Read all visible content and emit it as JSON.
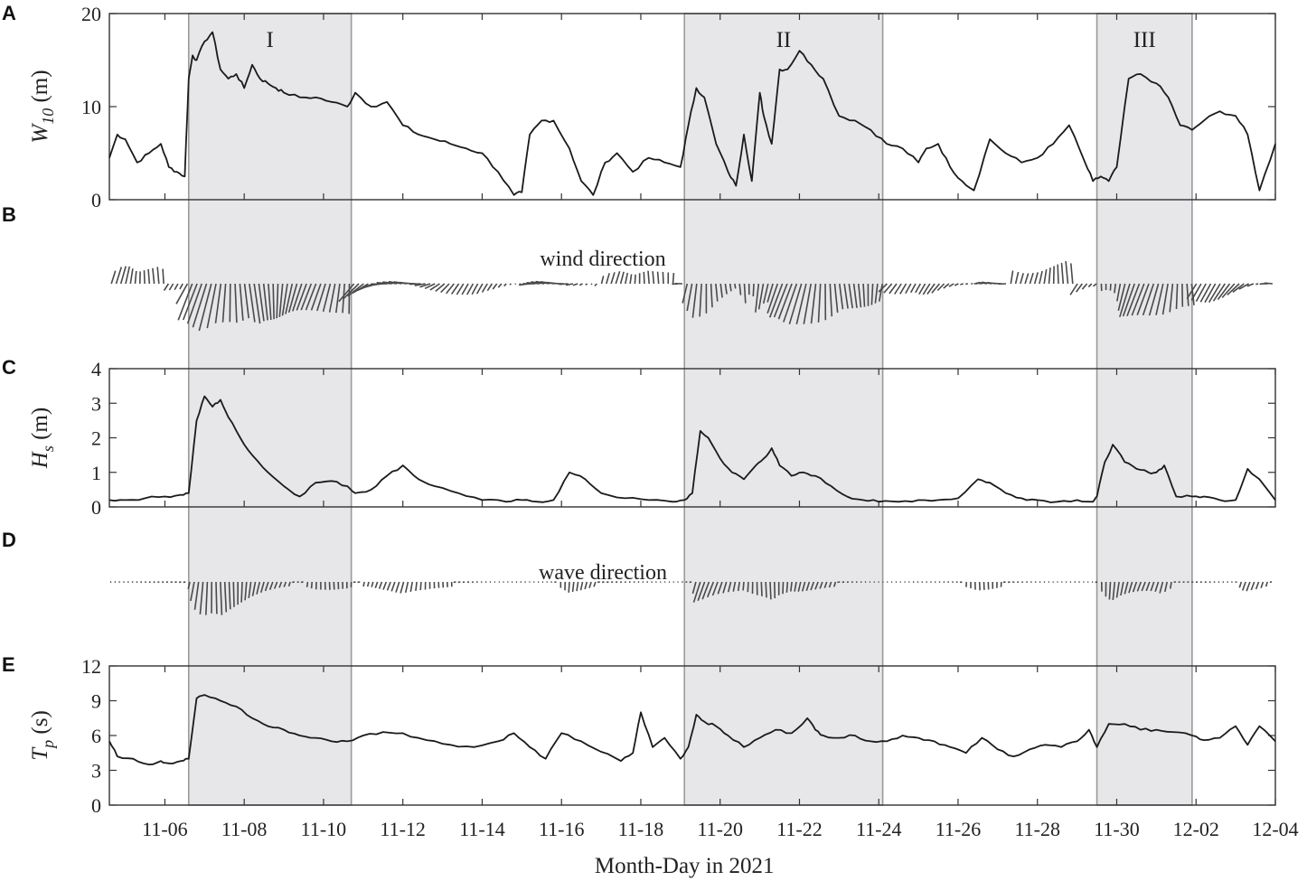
{
  "figure": {
    "xlabel": "Month-Day in 2021",
    "x_tick_labels": [
      "11-06",
      "11-08",
      "11-10",
      "11-12",
      "11-14",
      "11-16",
      "11-18",
      "11-20",
      "11-22",
      "11-24",
      "11-26",
      "11-28",
      "11-30",
      "12-02",
      "12-04"
    ],
    "x_tick_days": [
      6,
      8,
      10,
      12,
      14,
      16,
      18,
      20,
      22,
      24,
      26,
      28,
      30,
      32,
      34
    ],
    "x_range_days": [
      4.6,
      34
    ]
  },
  "shaded_events": [
    {
      "label": "I",
      "start_day": 6.6,
      "end_day": 10.7
    },
    {
      "label": "II",
      "start_day": 19.1,
      "end_day": 24.1
    },
    {
      "label": "III",
      "start_day": 29.5,
      "end_day": 31.9
    }
  ],
  "chart_data": [
    {
      "panel": "A",
      "type": "line",
      "ylabel_main": "W",
      "ylabel_sub": "10",
      "ylabel_unit": " (m)",
      "ylim": [
        0,
        20
      ],
      "yticks": [
        0,
        10,
        20
      ],
      "x": [
        4.6,
        4.8,
        5.0,
        5.3,
        5.6,
        5.9,
        6.1,
        6.3,
        6.5,
        6.6,
        6.7,
        6.8,
        7.0,
        7.2,
        7.4,
        7.6,
        7.8,
        8.0,
        8.2,
        8.4,
        8.6,
        8.8,
        9.0,
        9.4,
        9.8,
        10.2,
        10.6,
        10.8,
        11.2,
        11.6,
        12.0,
        12.4,
        12.8,
        13.2,
        13.6,
        14.0,
        14.4,
        14.8,
        15.0,
        15.2,
        15.5,
        15.8,
        16.2,
        16.5,
        16.8,
        17.1,
        17.4,
        17.8,
        18.2,
        18.6,
        19.0,
        19.2,
        19.4,
        19.6,
        19.9,
        20.2,
        20.4,
        20.6,
        20.8,
        21.0,
        21.1,
        21.3,
        21.5,
        21.7,
        22.0,
        22.3,
        22.6,
        23.0,
        23.4,
        23.8,
        24.2,
        24.6,
        25.0,
        25.2,
        25.5,
        25.8,
        26.1,
        26.4,
        26.8,
        27.2,
        27.6,
        28.0,
        28.4,
        28.8,
        29.2,
        29.4,
        29.6,
        29.8,
        30.0,
        30.3,
        30.6,
        31.0,
        31.3,
        31.6,
        31.9,
        32.2,
        32.6,
        33.0,
        33.3,
        33.6,
        34.0
      ],
      "y": [
        4.5,
        7.0,
        6.5,
        4.0,
        5.0,
        6.0,
        3.5,
        3.0,
        2.5,
        13.0,
        15.5,
        15.0,
        17.0,
        18.0,
        14.0,
        13.0,
        13.5,
        12.0,
        14.5,
        13.0,
        12.5,
        12.0,
        11.5,
        11.0,
        11.0,
        10.5,
        10.0,
        11.5,
        10.0,
        10.5,
        8.0,
        7.0,
        6.5,
        6.0,
        5.5,
        5.0,
        3.0,
        0.5,
        0.8,
        7.0,
        8.5,
        8.5,
        5.5,
        2.0,
        0.5,
        4.0,
        5.0,
        3.0,
        4.5,
        4.0,
        3.5,
        8.0,
        12.0,
        11.0,
        6.0,
        3.0,
        1.5,
        7.0,
        2.0,
        11.5,
        9.0,
        6.0,
        14.0,
        14.0,
        16.0,
        14.5,
        13.0,
        9.0,
        8.5,
        7.5,
        6.0,
        5.5,
        4.0,
        5.5,
        6.0,
        3.5,
        2.0,
        1.0,
        6.5,
        5.0,
        4.0,
        4.5,
        6.0,
        8.0,
        4.0,
        2.0,
        2.5,
        2.0,
        3.5,
        13.0,
        13.5,
        12.5,
        11.0,
        8.0,
        7.5,
        8.5,
        9.5,
        9.0,
        7.0,
        1.0,
        6.0
      ]
    },
    {
      "panel": "B",
      "type": "vector",
      "annotation": "wind direction",
      "note": "stick plot, vectors from a horizontal baseline"
    },
    {
      "panel": "C",
      "type": "line",
      "ylabel_main": "H",
      "ylabel_sub": "s",
      "ylabel_unit": " (m)",
      "ylim": [
        0,
        4
      ],
      "yticks": [
        0,
        1,
        2,
        3,
        4
      ],
      "x": [
        4.6,
        5.0,
        5.5,
        6.0,
        6.4,
        6.6,
        6.8,
        7.0,
        7.2,
        7.4,
        7.6,
        7.9,
        8.2,
        8.6,
        9.0,
        9.4,
        9.8,
        10.2,
        10.6,
        10.8,
        11.2,
        11.6,
        12.0,
        12.4,
        12.8,
        13.4,
        14.0,
        14.6,
        15.0,
        15.4,
        15.8,
        16.2,
        16.6,
        17.0,
        17.6,
        18.2,
        18.8,
        19.1,
        19.3,
        19.5,
        19.7,
        20.0,
        20.3,
        20.6,
        20.9,
        21.1,
        21.3,
        21.5,
        21.8,
        22.1,
        22.4,
        22.8,
        23.2,
        23.6,
        24.0,
        24.5,
        25.0,
        25.5,
        26.0,
        26.5,
        26.8,
        27.2,
        27.6,
        28.0,
        28.5,
        29.0,
        29.4,
        29.5,
        29.7,
        29.9,
        30.2,
        30.5,
        30.8,
        31.0,
        31.2,
        31.5,
        31.9,
        32.2,
        32.6,
        33.0,
        33.3,
        33.6,
        34.0
      ],
      "y": [
        0.2,
        0.2,
        0.25,
        0.3,
        0.35,
        0.4,
        2.5,
        3.2,
        2.9,
        3.1,
        2.6,
        2.0,
        1.5,
        1.0,
        0.6,
        0.3,
        0.7,
        0.75,
        0.6,
        0.4,
        0.5,
        0.9,
        1.2,
        0.8,
        0.6,
        0.4,
        0.2,
        0.15,
        0.2,
        0.15,
        0.2,
        1.0,
        0.8,
        0.4,
        0.25,
        0.2,
        0.15,
        0.2,
        0.4,
        2.2,
        2.0,
        1.4,
        1.0,
        0.8,
        1.2,
        1.4,
        1.7,
        1.2,
        0.9,
        1.0,
        0.9,
        0.6,
        0.3,
        0.2,
        0.15,
        0.15,
        0.2,
        0.2,
        0.25,
        0.8,
        0.7,
        0.4,
        0.25,
        0.2,
        0.15,
        0.2,
        0.15,
        0.3,
        1.3,
        1.8,
        1.3,
        1.1,
        1.0,
        1.0,
        1.2,
        0.3,
        0.3,
        0.3,
        0.2,
        0.2,
        1.1,
        0.8,
        0.2
      ]
    },
    {
      "panel": "D",
      "type": "vector",
      "annotation": "wave direction",
      "note": "stick plot, vectors from a horizontal baseline"
    },
    {
      "panel": "E",
      "type": "line",
      "ylabel_main": "T",
      "ylabel_sub": "p",
      "ylabel_unit": " (s)",
      "ylim": [
        0,
        12
      ],
      "yticks": [
        0,
        3,
        6,
        9,
        12
      ],
      "x": [
        4.6,
        4.8,
        5.2,
        5.6,
        5.9,
        6.1,
        6.4,
        6.6,
        6.8,
        7.0,
        7.4,
        7.8,
        8.2,
        8.6,
        9.0,
        9.4,
        9.8,
        10.2,
        10.6,
        11.0,
        11.5,
        12.0,
        12.6,
        13.2,
        13.8,
        14.4,
        14.8,
        15.2,
        15.6,
        16.0,
        16.5,
        17.0,
        17.5,
        17.8,
        18.0,
        18.3,
        18.6,
        19.0,
        19.2,
        19.4,
        19.6,
        19.9,
        20.2,
        20.6,
        21.0,
        21.4,
        21.8,
        22.2,
        22.4,
        22.6,
        23.0,
        23.4,
        23.8,
        24.2,
        24.6,
        25.0,
        25.4,
        25.8,
        26.2,
        26.6,
        27.0,
        27.4,
        27.8,
        28.2,
        28.6,
        29.0,
        29.3,
        29.5,
        29.8,
        30.2,
        30.6,
        31.0,
        31.4,
        31.9,
        32.2,
        32.6,
        33.0,
        33.3,
        33.6,
        34.0
      ],
      "y": [
        5.5,
        4.2,
        4.0,
        3.5,
        3.8,
        3.6,
        3.8,
        4.0,
        9.2,
        9.5,
        9.0,
        8.5,
        7.5,
        6.8,
        6.5,
        6.0,
        5.8,
        5.5,
        5.5,
        6.0,
        6.3,
        6.2,
        5.6,
        5.2,
        5.0,
        5.5,
        6.2,
        5.0,
        4.0,
        6.2,
        5.5,
        4.6,
        3.8,
        4.5,
        8.0,
        5.0,
        5.8,
        4.0,
        5.0,
        7.8,
        7.2,
        6.8,
        6.0,
        5.0,
        5.8,
        6.5,
        6.2,
        7.5,
        6.5,
        6.0,
        5.8,
        6.0,
        5.5,
        5.5,
        6.0,
        5.8,
        5.5,
        5.0,
        4.5,
        5.8,
        4.8,
        4.2,
        4.8,
        5.2,
        5.0,
        5.5,
        6.5,
        5.0,
        7.0,
        7.0,
        6.5,
        6.5,
        6.3,
        6.0,
        5.6,
        5.8,
        6.8,
        5.2,
        6.8,
        5.5
      ]
    }
  ]
}
